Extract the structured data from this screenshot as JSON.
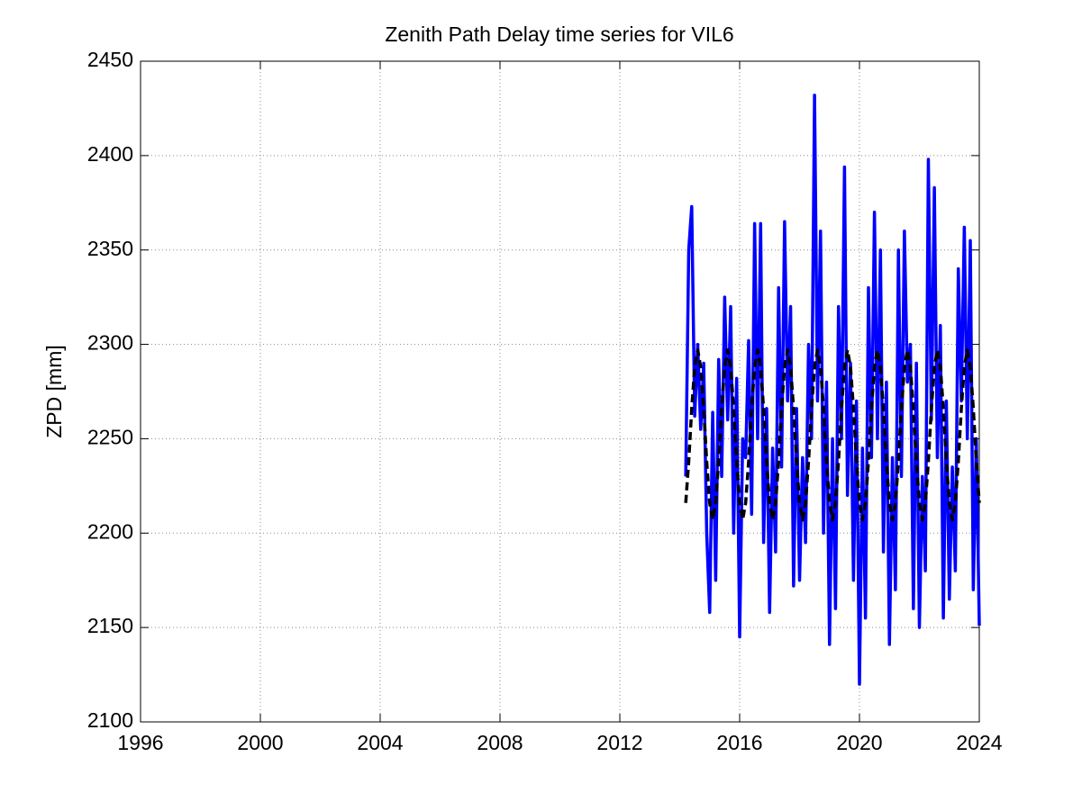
{
  "chart_data": {
    "type": "line",
    "title": "Zenith Path Delay time series for VIL6",
    "y_label": "ZPD [mm]",
    "x": [
      2014.2,
      2014.3,
      2014.4,
      2014.5,
      2014.6,
      2014.7,
      2014.8,
      2014.9,
      2015.0,
      2015.1,
      2015.2,
      2015.3,
      2015.4,
      2015.5,
      2015.6,
      2015.7,
      2015.8,
      2015.9,
      2016.0,
      2016.1,
      2016.2,
      2016.3,
      2016.4,
      2016.5,
      2016.6,
      2016.7,
      2016.8,
      2016.9,
      2017.0,
      2017.1,
      2017.2,
      2017.3,
      2017.4,
      2017.5,
      2017.6,
      2017.7,
      2017.8,
      2017.9,
      2018.0,
      2018.1,
      2018.2,
      2018.3,
      2018.4,
      2018.5,
      2018.6,
      2018.7,
      2018.8,
      2018.9,
      2019.0,
      2019.1,
      2019.2,
      2019.3,
      2019.4,
      2019.5,
      2019.6,
      2019.7,
      2019.8,
      2019.9,
      2020.0,
      2020.1,
      2020.2,
      2020.3,
      2020.4,
      2020.5,
      2020.6,
      2020.7,
      2020.8,
      2020.9,
      2021.0,
      2021.1,
      2021.2,
      2021.3,
      2021.4,
      2021.5,
      2021.6,
      2021.7,
      2021.8,
      2021.9,
      2022.0,
      2022.1,
      2022.2,
      2022.3,
      2022.4,
      2022.5,
      2022.6,
      2022.7,
      2022.8,
      2022.9,
      2023.0,
      2023.1,
      2023.2,
      2023.3,
      2023.4,
      2023.5,
      2023.6,
      2023.7,
      2023.8,
      2023.9,
      2024.0
    ],
    "series": [
      {
        "color": "#0000ff",
        "dash": false,
        "values": [
          2230,
          2350,
          2373,
          2262,
          2300,
          2255,
          2290,
          2200,
          2158,
          2264,
          2175,
          2292,
          2230,
          2325,
          2260,
          2320,
          2200,
          2282,
          2145,
          2250,
          2240,
          2302,
          2210,
          2364,
          2250,
          2364,
          2195,
          2266,
          2158,
          2245,
          2190,
          2330,
          2235,
          2365,
          2270,
          2320,
          2172,
          2266,
          2175,
          2240,
          2195,
          2300,
          2250,
          2432,
          2270,
          2360,
          2200,
          2280,
          2141,
          2250,
          2160,
          2320,
          2250,
          2394,
          2220,
          2290,
          2175,
          2270,
          2120,
          2245,
          2155,
          2330,
          2240,
          2370,
          2250,
          2350,
          2190,
          2280,
          2141,
          2240,
          2170,
          2350,
          2230,
          2360,
          2280,
          2300,
          2160,
          2290,
          2150,
          2230,
          2180,
          2398,
          2260,
          2383,
          2240,
          2310,
          2155,
          2270,
          2165,
          2235,
          2180,
          2340,
          2270,
          2362,
          2250,
          2355,
          2170,
          2250,
          2151
        ]
      },
      {
        "color": "#000000",
        "dash": true,
        "values": [
          2216,
          2238,
          2266,
          2288,
          2297,
          2288,
          2266,
          2238,
          2216,
          2207,
          2216,
          2238,
          2266,
          2288,
          2297,
          2288,
          2266,
          2238,
          2216,
          2207,
          2216,
          2238,
          2266,
          2288,
          2297,
          2288,
          2266,
          2238,
          2216,
          2207,
          2216,
          2238,
          2266,
          2288,
          2297,
          2288,
          2266,
          2238,
          2216,
          2207,
          2216,
          2238,
          2266,
          2288,
          2297,
          2288,
          2266,
          2238,
          2216,
          2207,
          2216,
          2238,
          2266,
          2288,
          2297,
          2288,
          2266,
          2238,
          2216,
          2207,
          2216,
          2238,
          2266,
          2288,
          2297,
          2288,
          2266,
          2238,
          2216,
          2207,
          2216,
          2238,
          2266,
          2288,
          2297,
          2288,
          2266,
          2238,
          2216,
          2207,
          2216,
          2238,
          2266,
          2288,
          2297,
          2288,
          2266,
          2238,
          2216,
          2207,
          2216,
          2238,
          2266,
          2288,
          2297,
          2288,
          2266,
          2238,
          2216
        ]
      }
    ],
    "xlim": [
      1996,
      2024
    ],
    "xticks": [
      1996,
      2000,
      2004,
      2008,
      2012,
      2016,
      2020,
      2024
    ],
    "ylim": [
      2100,
      2450
    ],
    "yticks": [
      2100,
      2150,
      2200,
      2250,
      2300,
      2350,
      2400,
      2450
    ],
    "grid": true
  }
}
